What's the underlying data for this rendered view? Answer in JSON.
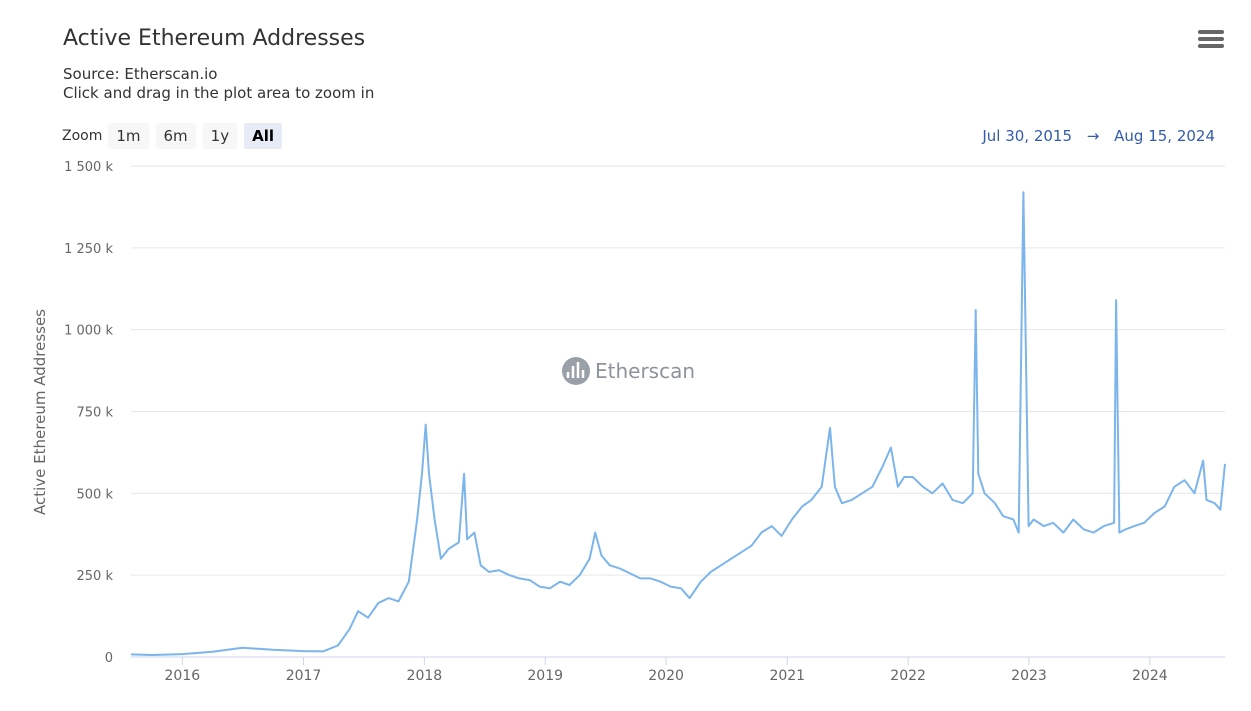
{
  "header": {
    "title": "Active Ethereum Addresses",
    "source": "Source: Etherscan.io",
    "hint": "Click and drag in the plot area to zoom in",
    "menu_icon": "hamburger-menu-icon"
  },
  "zoom": {
    "label": "Zoom",
    "buttons": [
      {
        "label": "1m",
        "active": false
      },
      {
        "label": "6m",
        "active": false
      },
      {
        "label": "1y",
        "active": false
      },
      {
        "label": "All",
        "active": true
      }
    ]
  },
  "range": {
    "from": "Jul 30, 2015",
    "arrow": "→",
    "to": "Aug 15, 2024"
  },
  "watermark": "Etherscan",
  "colors": {
    "line": "#7cb5ec",
    "range_text": "#335cad",
    "grid": "#e6e6e6"
  },
  "chart_data": {
    "type": "line",
    "title": "Active Ethereum Addresses",
    "ylabel": "Active Ethereum Addresses",
    "xlabel": "",
    "ylim": [
      0,
      1500000
    ],
    "xlim": [
      "2015-07-30",
      "2024-08-15"
    ],
    "y_ticks": [
      0,
      250000,
      500000,
      750000,
      1000000,
      1250000,
      1500000
    ],
    "y_tick_labels": [
      "0",
      "250 k",
      "500 k",
      "750 k",
      "1 000 k",
      "1 250 k",
      "1 500 k"
    ],
    "x_ticks": [
      "2016-01-01",
      "2017-01-01",
      "2018-01-01",
      "2019-01-01",
      "2020-01-01",
      "2021-01-01",
      "2022-01-01",
      "2023-01-01",
      "2024-01-01"
    ],
    "x_tick_labels": [
      "2016",
      "2017",
      "2018",
      "2019",
      "2020",
      "2021",
      "2022",
      "2023",
      "2024"
    ],
    "grid": true,
    "legend": "none",
    "series": [
      {
        "x": [
          "2015-07-30",
          "2015-10-01",
          "2016-01-01",
          "2016-04-01",
          "2016-07-01",
          "2016-10-01",
          "2017-01-01",
          "2017-03-01",
          "2017-04-15",
          "2017-05-20",
          "2017-06-15",
          "2017-07-15",
          "2017-08-15",
          "2017-09-15",
          "2017-10-15",
          "2017-11-15",
          "2017-12-10",
          "2017-12-25",
          "2018-01-05",
          "2018-01-15",
          "2018-02-01",
          "2018-02-20",
          "2018-03-15",
          "2018-04-15",
          "2018-05-01",
          "2018-05-10",
          "2018-06-01",
          "2018-06-20",
          "2018-07-15",
          "2018-08-15",
          "2018-09-15",
          "2018-10-15",
          "2018-11-15",
          "2018-12-15",
          "2019-01-15",
          "2019-02-15",
          "2019-03-15",
          "2019-04-15",
          "2019-05-15",
          "2019-06-01",
          "2019-06-20",
          "2019-07-15",
          "2019-08-15",
          "2019-09-15",
          "2019-10-15",
          "2019-11-15",
          "2019-12-15",
          "2020-01-15",
          "2020-02-15",
          "2020-03-12",
          "2020-04-15",
          "2020-05-15",
          "2020-06-15",
          "2020-07-15",
          "2020-08-15",
          "2020-09-15",
          "2020-10-15",
          "2020-11-15",
          "2020-12-15",
          "2021-01-15",
          "2021-02-15",
          "2021-03-15",
          "2021-04-15",
          "2021-05-10",
          "2021-05-25",
          "2021-06-15",
          "2021-07-15",
          "2021-08-15",
          "2021-09-15",
          "2021-10-15",
          "2021-11-10",
          "2021-12-01",
          "2021-12-20",
          "2022-01-15",
          "2022-02-15",
          "2022-03-15",
          "2022-04-15",
          "2022-05-15",
          "2022-06-15",
          "2022-07-15",
          "2022-07-24",
          "2022-08-01",
          "2022-08-20",
          "2022-09-20",
          "2022-10-15",
          "2022-11-15",
          "2022-12-01",
          "2022-12-15",
          "2022-12-31",
          "2023-01-15",
          "2023-02-15",
          "2023-03-15",
          "2023-04-15",
          "2023-05-15",
          "2023-06-15",
          "2023-07-15",
          "2023-08-15",
          "2023-09-15",
          "2023-09-21",
          "2023-10-01",
          "2023-10-20",
          "2023-11-15",
          "2023-12-15",
          "2024-01-15",
          "2024-02-15",
          "2024-03-15",
          "2024-04-15",
          "2024-05-15",
          "2024-06-10",
          "2024-06-20",
          "2024-07-15",
          "2024-08-01",
          "2024-08-15"
        ],
        "y": [
          8000,
          6000,
          9000,
          16000,
          28000,
          22000,
          18000,
          17000,
          35000,
          85000,
          140000,
          120000,
          165000,
          180000,
          170000,
          230000,
          420000,
          560000,
          710000,
          560000,
          420000,
          300000,
          330000,
          350000,
          560000,
          360000,
          380000,
          280000,
          260000,
          265000,
          250000,
          240000,
          235000,
          215000,
          210000,
          230000,
          220000,
          250000,
          300000,
          380000,
          310000,
          280000,
          270000,
          255000,
          240000,
          240000,
          230000,
          215000,
          210000,
          180000,
          230000,
          260000,
          280000,
          300000,
          320000,
          340000,
          380000,
          400000,
          370000,
          420000,
          460000,
          480000,
          520000,
          700000,
          520000,
          470000,
          480000,
          500000,
          520000,
          580000,
          640000,
          520000,
          550000,
          550000,
          520000,
          500000,
          530000,
          480000,
          470000,
          500000,
          1060000,
          560000,
          500000,
          470000,
          430000,
          420000,
          380000,
          1420000,
          400000,
          420000,
          400000,
          410000,
          380000,
          420000,
          390000,
          380000,
          400000,
          410000,
          1090000,
          380000,
          390000,
          400000,
          410000,
          440000,
          460000,
          520000,
          540000,
          500000,
          600000,
          480000,
          470000,
          450000,
          590000
        ]
      }
    ]
  }
}
